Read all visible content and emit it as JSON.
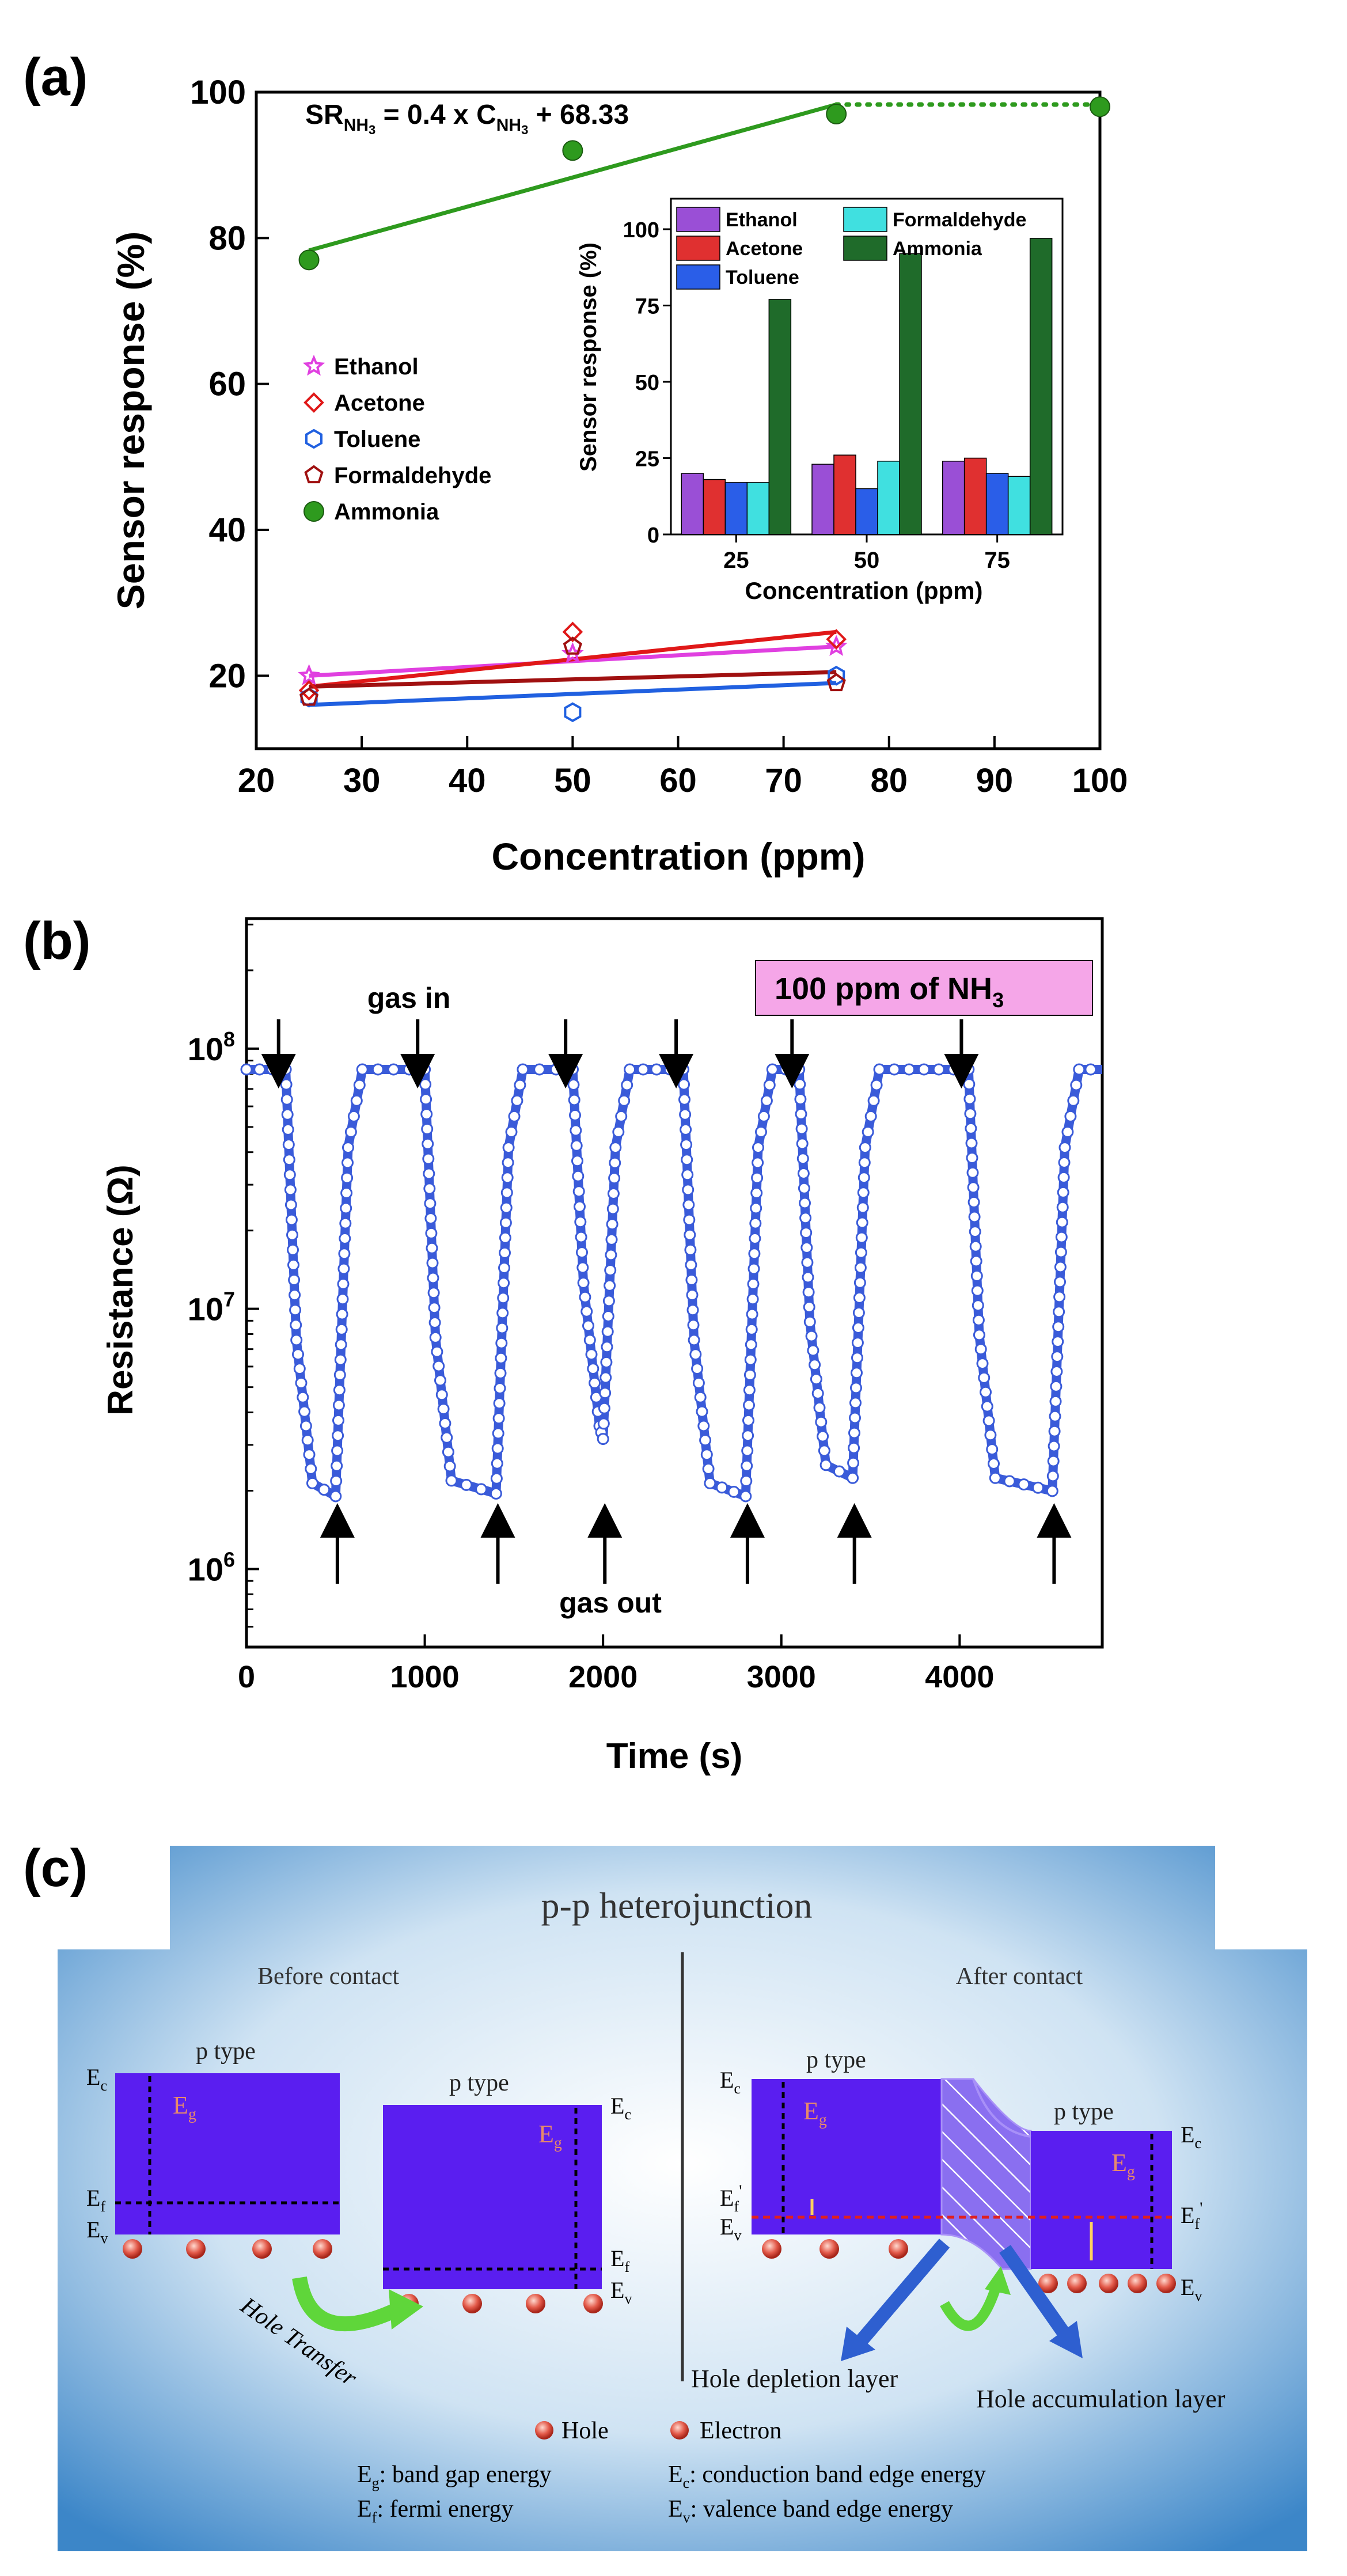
{
  "chart_data": [
    {
      "panel": "(a)",
      "type": "scatter",
      "xlabel": "Concentration (ppm)",
      "ylabel": "Sensor response (%)",
      "xlim": [
        20,
        100
      ],
      "ylim": [
        10,
        100
      ],
      "xticks": [
        20,
        30,
        40,
        50,
        60,
        70,
        80,
        90,
        100
      ],
      "yticks": [
        20,
        40,
        60,
        80,
        100
      ],
      "equation": {
        "lead": "SR",
        "lead_sub": "NH",
        "lead_sub_num": "3",
        "mid": " = 0.4 x C",
        "mid_sub": "NH",
        "mid_sub_num": "3",
        "tail": " + 68.33"
      },
      "legend_position": "middle-left",
      "series": [
        {
          "name": "Ethanol",
          "marker": "star",
          "color": "#e040e0",
          "x": [
            25,
            50,
            75
          ],
          "values": [
            20,
            23,
            24
          ],
          "fit": [
            [
              25,
              20
            ],
            [
              75,
              24
            ]
          ]
        },
        {
          "name": "Acetone",
          "marker": "diamond",
          "color": "#e01818",
          "x": [
            25,
            50,
            75
          ],
          "values": [
            18,
            26,
            25
          ],
          "fit": [
            [
              25,
              18.5
            ],
            [
              75,
              26
            ]
          ]
        },
        {
          "name": "Toluene",
          "marker": "hexagon",
          "color": "#2060e0",
          "x": [
            25,
            50,
            75
          ],
          "values": [
            17,
            15,
            20
          ],
          "fit": [
            [
              25,
              16
            ],
            [
              75,
              19
            ]
          ]
        },
        {
          "name": "Formaldehyde",
          "marker": "pentagon",
          "color": "#a01010",
          "x": [
            25,
            50,
            75
          ],
          "values": [
            17,
            24,
            19
          ],
          "fit": [
            [
              25,
              18.5
            ],
            [
              75,
              20.5
            ]
          ]
        },
        {
          "name": "Ammonia",
          "marker": "circle",
          "color": "#2e9a1e",
          "x": [
            25,
            50,
            75,
            100
          ],
          "values": [
            77,
            92,
            97,
            98
          ],
          "fit": [
            [
              25,
              78.3
            ],
            [
              75,
              98.3
            ]
          ],
          "dotted": [
            [
              75,
              98.3
            ],
            [
              100,
              98.3
            ]
          ]
        }
      ],
      "inset": {
        "type": "bar",
        "xlabel": "Concentration (ppm)",
        "ylabel": "Sensor response (%)",
        "categories": [
          "25",
          "50",
          "75"
        ],
        "ylim": [
          0,
          110
        ],
        "yticks": [
          0,
          25,
          50,
          75,
          100
        ],
        "series": [
          {
            "name": "Ethanol",
            "color": "#9a4fd6",
            "values": [
              20,
              23,
              24
            ]
          },
          {
            "name": "Acetone",
            "color": "#e03030",
            "values": [
              18,
              26,
              25
            ]
          },
          {
            "name": "Toluene",
            "color": "#2a5ee8",
            "values": [
              17,
              15,
              20
            ]
          },
          {
            "name": "Formaldehyde",
            "color": "#40e0e0",
            "values": [
              17,
              24,
              19
            ]
          },
          {
            "name": "Ammonia",
            "color": "#1f6b2a",
            "values": [
              77,
              92,
              97
            ]
          }
        ]
      }
    },
    {
      "panel": "(b)",
      "type": "line",
      "xlabel": "Time (s)",
      "ylabel": "Resistance (Ω)",
      "yscale": "log",
      "xlim": [
        0,
        4800
      ],
      "ylim_log10": [
        5.7,
        8.5
      ],
      "xticks": [
        0,
        1000,
        2000,
        3000,
        4000
      ],
      "yticks": [
        {
          "base": "10",
          "exp": "6",
          "value": 6
        },
        {
          "base": "10",
          "exp": "7",
          "value": 7
        },
        {
          "base": "10",
          "exp": "8",
          "value": 8
        }
      ],
      "high_log10": 7.92,
      "color": "#3a5bd9",
      "box_label": {
        "text": "100 ppm of NH",
        "sub": "3",
        "color": "#f5a6e8"
      },
      "gas_in_label": "gas in",
      "gas_out_label": "gas out",
      "cycles": [
        {
          "gas_in_s": 220,
          "gas_out_s": 500,
          "min_log10": 6.28
        },
        {
          "gas_in_s": 1000,
          "gas_out_s": 1400,
          "min_log10": 6.29
        },
        {
          "gas_in_s": 1830,
          "gas_out_s": 2000,
          "min_log10": 6.5
        },
        {
          "gas_in_s": 2450,
          "gas_out_s": 2800,
          "min_log10": 6.28
        },
        {
          "gas_in_s": 3100,
          "gas_out_s": 3400,
          "min_log10": 6.35
        },
        {
          "gas_in_s": 4050,
          "gas_out_s": 4520,
          "min_log10": 6.3
        }
      ]
    }
  ],
  "diagram": {
    "panel": "(c)",
    "title": "p-p heterojunction",
    "before_label": "Before contact",
    "after_label": "After contact",
    "p_type": "p type",
    "e_c": "E",
    "e_c_sub": "c",
    "e_f": "E",
    "e_f_sub": "f",
    "e_v": "E",
    "e_v_sub": "v",
    "e_g": "E",
    "e_g_sub": "g",
    "prime": "'",
    "hole_transfer": "Hole Transfer",
    "depletion": "Hole depletion layer",
    "accumulation": "Hole accumulation layer",
    "hole_legend": "Hole",
    "electron_legend": "Electron",
    "def_eg_sym": "E",
    "def_eg_sub": "g",
    "def_eg": ": band gap energy",
    "def_ef_sym": "E",
    "def_ef_sub": "f",
    "def_ef": ": fermi energy",
    "def_ec_sym": "E",
    "def_ec_sub": "c",
    "def_ec": ": conduction band edge energy",
    "def_ev_sym": "E",
    "def_ev_sub": "v",
    "def_ev": ": valence band edge energy",
    "colors": {
      "band": "#5a1ef0",
      "hole": "#e35a4a",
      "arrow_green": "#5fd63a",
      "arrow_blue": "#2e5fd0",
      "fermi_red": "#e02020"
    }
  }
}
